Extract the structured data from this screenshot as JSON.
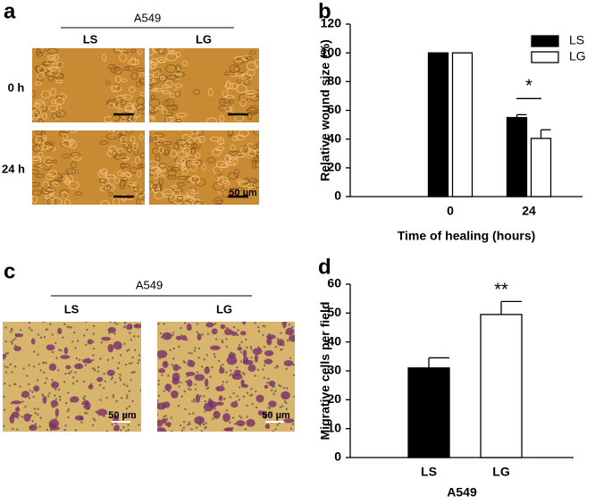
{
  "panels": {
    "a": {
      "label": "a",
      "title": "A549",
      "columns": [
        "LS",
        "LG"
      ],
      "rows": [
        "0 h",
        "24 h"
      ],
      "scale_bar": "50 µm"
    },
    "b": {
      "label": "b"
    },
    "c": {
      "label": "c",
      "title": "A549",
      "columns": [
        "LS",
        "LG"
      ],
      "scale_bar": "50 µm"
    },
    "d": {
      "label": "d"
    }
  },
  "chart_data": [
    {
      "type": "bar",
      "categories": [
        "0",
        "24"
      ],
      "x_label": "Time of healing (hours)",
      "y_label": "Relative wound size (%)",
      "series": [
        {
          "name": "LS",
          "color": "#000000",
          "values": [
            100,
            55
          ],
          "errors": [
            0,
            2
          ]
        },
        {
          "name": "LG",
          "color": "#ffffff",
          "values": [
            100,
            40.5
          ],
          "errors": [
            0,
            6
          ]
        }
      ],
      "ylim": [
        0,
        120
      ],
      "yticks": [
        0,
        20,
        40,
        60,
        80,
        100,
        120
      ],
      "legend": "upper right",
      "annotation": "*"
    },
    {
      "type": "bar",
      "categories": [
        "LS",
        "LG"
      ],
      "x_label": "A549",
      "y_label": "Migrative cells per field",
      "values": [
        31,
        49.5
      ],
      "errors": [
        3.5,
        4.5
      ],
      "colors": [
        "#000000",
        "#ffffff"
      ],
      "ylim": [
        0,
        60
      ],
      "yticks": [
        0,
        10,
        20,
        30,
        40,
        50,
        60
      ],
      "annotation": "**"
    }
  ]
}
